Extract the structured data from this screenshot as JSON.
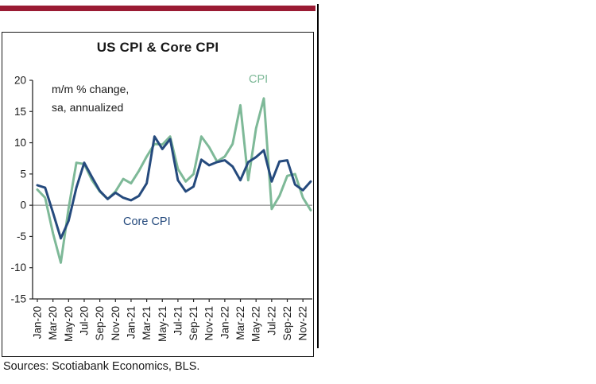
{
  "page": {
    "background": "#FFFFFF",
    "accent_bar_color": "#9A1B33",
    "divider_color": "#000000"
  },
  "chart": {
    "title": "US CPI & Core CPI",
    "annotation": "m/m % change,\nsa, annualized",
    "cpi_label": "CPI",
    "core_cpi_label": "Core CPI",
    "source": "Sources: Scotiabank Economics, BLS."
  },
  "chart_data": {
    "type": "line",
    "title": "US CPI & Core CPI",
    "ylabel": "m/m % change, sa, annualized",
    "ylim": [
      -15,
      20
    ],
    "yticks": [
      20,
      15,
      10,
      5,
      0,
      -5,
      -10,
      -15
    ],
    "grid": false,
    "legend": "inline-labels",
    "x_tick_every": 2,
    "x": [
      "Jan-20",
      "Feb-20",
      "Mar-20",
      "Apr-20",
      "May-20",
      "Jun-20",
      "Jul-20",
      "Aug-20",
      "Sep-20",
      "Oct-20",
      "Nov-20",
      "Dec-20",
      "Jan-21",
      "Feb-21",
      "Mar-21",
      "Apr-21",
      "May-21",
      "Jun-21",
      "Jul-21",
      "Aug-21",
      "Sep-21",
      "Oct-21",
      "Nov-21",
      "Dec-21",
      "Jan-22",
      "Feb-22",
      "Mar-22",
      "Apr-22",
      "May-22",
      "Jun-22",
      "Jul-22",
      "Aug-22",
      "Sep-22",
      "Oct-22",
      "Nov-22",
      "Dec-22"
    ],
    "series": [
      {
        "name": "CPI",
        "color": "#7EB998",
        "values": [
          2.5,
          1.2,
          -4.5,
          -9.2,
          -0.5,
          6.8,
          6.6,
          4.0,
          2.2,
          1.0,
          2.2,
          4.2,
          3.5,
          5.5,
          7.8,
          9.8,
          9.7,
          11.0,
          5.8,
          3.8,
          5.0,
          11.0,
          9.3,
          7.0,
          7.8,
          9.8,
          16.0,
          4.0,
          12.3,
          17.1,
          -0.6,
          1.5,
          4.7,
          5.0,
          1.2,
          -0.8
        ]
      },
      {
        "name": "Core CPI",
        "color": "#254A7D",
        "values": [
          3.2,
          2.8,
          -1.2,
          -5.3,
          -2.5,
          2.8,
          6.8,
          4.5,
          2.3,
          1.0,
          2.0,
          1.2,
          0.8,
          1.5,
          3.5,
          11.0,
          9.0,
          10.6,
          4.0,
          2.2,
          3.0,
          7.3,
          6.4,
          6.9,
          7.2,
          6.2,
          4.0,
          6.9,
          7.7,
          8.8,
          3.8,
          7.0,
          7.2,
          3.3,
          2.4,
          3.8
        ]
      }
    ]
  }
}
